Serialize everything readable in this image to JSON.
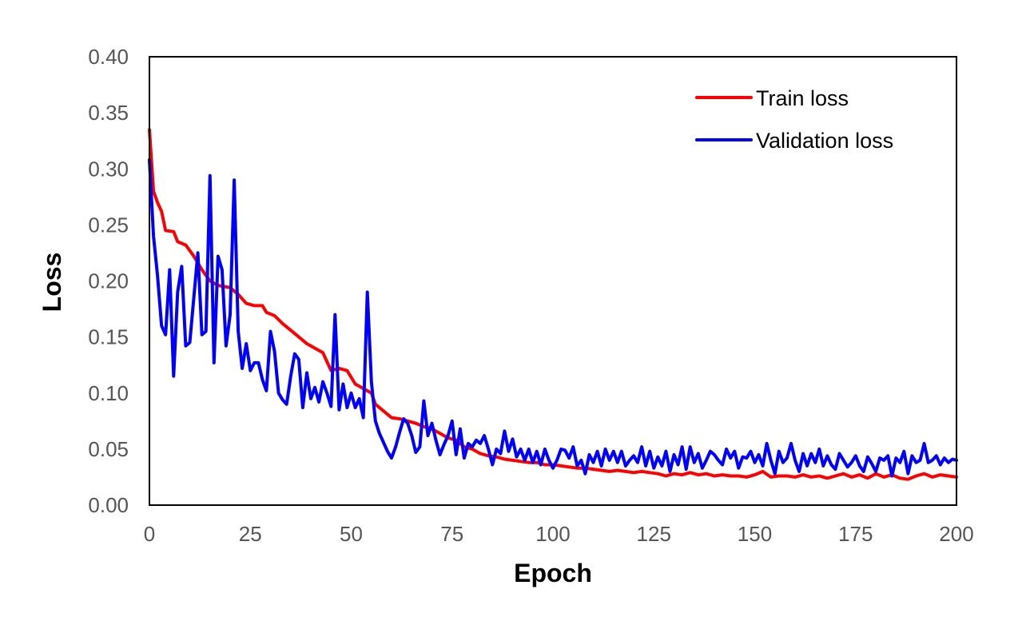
{
  "chart_data": {
    "type": "line",
    "title": "",
    "xlabel": "Epoch",
    "ylabel": "Loss",
    "xlim": [
      0,
      200
    ],
    "ylim": [
      0,
      0.4
    ],
    "x_ticks": [
      0,
      25,
      50,
      75,
      100,
      125,
      150,
      175,
      200
    ],
    "y_ticks": [
      0.0,
      0.05,
      0.1,
      0.15,
      0.2,
      0.25,
      0.3,
      0.35,
      0.4
    ],
    "y_tick_labels": [
      "0.00",
      "0.05",
      "0.10",
      "0.15",
      "0.20",
      "0.25",
      "0.30",
      "0.35",
      "0.40"
    ],
    "x_tick_labels": [
      "0",
      "25",
      "50",
      "75",
      "100",
      "125",
      "150",
      "175",
      "200"
    ],
    "grid": false,
    "legend_position": "top-right",
    "series": [
      {
        "name": "Train loss",
        "color": "#ff0000",
        "points": [
          [
            0,
            0.335
          ],
          [
            1,
            0.28
          ],
          [
            2,
            0.27
          ],
          [
            3,
            0.262
          ],
          [
            4,
            0.245
          ],
          [
            6,
            0.244
          ],
          [
            7,
            0.235
          ],
          [
            9,
            0.232
          ],
          [
            11,
            0.222
          ],
          [
            13,
            0.21
          ],
          [
            15,
            0.2
          ],
          [
            17,
            0.196
          ],
          [
            20,
            0.194
          ],
          [
            22,
            0.188
          ],
          [
            24,
            0.18
          ],
          [
            26,
            0.178
          ],
          [
            28,
            0.178
          ],
          [
            29,
            0.172
          ],
          [
            31,
            0.169
          ],
          [
            33,
            0.162
          ],
          [
            35,
            0.156
          ],
          [
            37,
            0.15
          ],
          [
            39,
            0.144
          ],
          [
            41,
            0.14
          ],
          [
            43,
            0.136
          ],
          [
            44,
            0.128
          ],
          [
            45,
            0.12
          ],
          [
            47,
            0.122
          ],
          [
            49,
            0.12
          ],
          [
            51,
            0.108
          ],
          [
            53,
            0.104
          ],
          [
            55,
            0.1
          ],
          [
            56,
            0.09
          ],
          [
            58,
            0.084
          ],
          [
            60,
            0.078
          ],
          [
            62,
            0.077
          ],
          [
            64,
            0.075
          ],
          [
            66,
            0.073
          ],
          [
            68,
            0.07
          ],
          [
            70,
            0.068
          ],
          [
            72,
            0.064
          ],
          [
            74,
            0.06
          ],
          [
            76,
            0.058
          ],
          [
            78,
            0.052
          ],
          [
            80,
            0.05
          ],
          [
            82,
            0.046
          ],
          [
            84,
            0.044
          ],
          [
            86,
            0.043
          ],
          [
            88,
            0.041
          ],
          [
            90,
            0.04
          ],
          [
            92,
            0.039
          ],
          [
            94,
            0.038
          ],
          [
            96,
            0.038
          ],
          [
            98,
            0.036
          ],
          [
            100,
            0.036
          ],
          [
            102,
            0.035
          ],
          [
            104,
            0.034
          ],
          [
            106,
            0.033
          ],
          [
            108,
            0.033
          ],
          [
            110,
            0.032
          ],
          [
            112,
            0.031
          ],
          [
            114,
            0.03
          ],
          [
            116,
            0.031
          ],
          [
            118,
            0.03
          ],
          [
            120,
            0.029
          ],
          [
            122,
            0.03
          ],
          [
            124,
            0.029
          ],
          [
            126,
            0.028
          ],
          [
            128,
            0.026
          ],
          [
            130,
            0.028
          ],
          [
            132,
            0.027
          ],
          [
            134,
            0.029
          ],
          [
            136,
            0.027
          ],
          [
            138,
            0.028
          ],
          [
            140,
            0.026
          ],
          [
            142,
            0.027
          ],
          [
            144,
            0.026
          ],
          [
            146,
            0.026
          ],
          [
            148,
            0.025
          ],
          [
            150,
            0.027
          ],
          [
            152,
            0.03
          ],
          [
            154,
            0.025
          ],
          [
            156,
            0.026
          ],
          [
            158,
            0.026
          ],
          [
            160,
            0.025
          ],
          [
            162,
            0.027
          ],
          [
            164,
            0.025
          ],
          [
            166,
            0.026
          ],
          [
            168,
            0.024
          ],
          [
            170,
            0.026
          ],
          [
            172,
            0.028
          ],
          [
            174,
            0.025
          ],
          [
            176,
            0.027
          ],
          [
            178,
            0.024
          ],
          [
            180,
            0.028
          ],
          [
            182,
            0.025
          ],
          [
            184,
            0.027
          ],
          [
            186,
            0.024
          ],
          [
            188,
            0.023
          ],
          [
            190,
            0.026
          ],
          [
            192,
            0.028
          ],
          [
            194,
            0.025
          ],
          [
            196,
            0.027
          ],
          [
            198,
            0.026
          ],
          [
            200,
            0.025
          ]
        ]
      },
      {
        "name": "Validation loss",
        "color": "#0000ff",
        "points": [
          [
            0,
            0.308
          ],
          [
            1,
            0.24
          ],
          [
            2,
            0.205
          ],
          [
            3,
            0.16
          ],
          [
            4,
            0.152
          ],
          [
            5,
            0.21
          ],
          [
            6,
            0.115
          ],
          [
            7,
            0.19
          ],
          [
            8,
            0.213
          ],
          [
            9,
            0.142
          ],
          [
            10,
            0.145
          ],
          [
            12,
            0.225
          ],
          [
            13,
            0.152
          ],
          [
            14,
            0.155
          ],
          [
            15,
            0.294
          ],
          [
            16,
            0.127
          ],
          [
            17,
            0.222
          ],
          [
            18,
            0.21
          ],
          [
            19,
            0.142
          ],
          [
            20,
            0.17
          ],
          [
            21,
            0.29
          ],
          [
            22,
            0.155
          ],
          [
            23,
            0.122
          ],
          [
            24,
            0.144
          ],
          [
            25,
            0.12
          ],
          [
            26,
            0.127
          ],
          [
            27,
            0.127
          ],
          [
            28,
            0.112
          ],
          [
            29,
            0.102
          ],
          [
            30,
            0.155
          ],
          [
            31,
            0.137
          ],
          [
            32,
            0.1
          ],
          [
            33,
            0.094
          ],
          [
            34,
            0.09
          ],
          [
            35,
            0.115
          ],
          [
            36,
            0.135
          ],
          [
            37,
            0.13
          ],
          [
            38,
            0.087
          ],
          [
            39,
            0.118
          ],
          [
            40,
            0.095
          ],
          [
            41,
            0.105
          ],
          [
            42,
            0.092
          ],
          [
            43,
            0.11
          ],
          [
            44,
            0.1
          ],
          [
            45,
            0.088
          ],
          [
            46,
            0.17
          ],
          [
            47,
            0.085
          ],
          [
            48,
            0.108
          ],
          [
            49,
            0.087
          ],
          [
            50,
            0.1
          ],
          [
            51,
            0.087
          ],
          [
            52,
            0.095
          ],
          [
            53,
            0.078
          ],
          [
            54,
            0.19
          ],
          [
            55,
            0.11
          ],
          [
            56,
            0.075
          ],
          [
            57,
            0.064
          ],
          [
            58,
            0.056
          ],
          [
            59,
            0.048
          ],
          [
            60,
            0.042
          ],
          [
            61,
            0.052
          ],
          [
            62,
            0.065
          ],
          [
            63,
            0.077
          ],
          [
            64,
            0.073
          ],
          [
            65,
            0.062
          ],
          [
            66,
            0.047
          ],
          [
            67,
            0.052
          ],
          [
            68,
            0.093
          ],
          [
            69,
            0.062
          ],
          [
            70,
            0.073
          ],
          [
            71,
            0.058
          ],
          [
            72,
            0.045
          ],
          [
            73,
            0.054
          ],
          [
            74,
            0.062
          ],
          [
            75,
            0.075
          ],
          [
            76,
            0.045
          ],
          [
            77,
            0.068
          ],
          [
            78,
            0.042
          ],
          [
            79,
            0.055
          ],
          [
            80,
            0.052
          ],
          [
            81,
            0.058
          ],
          [
            82,
            0.055
          ],
          [
            83,
            0.062
          ],
          [
            84,
            0.05
          ],
          [
            85,
            0.036
          ],
          [
            86,
            0.05
          ],
          [
            87,
            0.046
          ],
          [
            88,
            0.066
          ],
          [
            89,
            0.048
          ],
          [
            90,
            0.059
          ],
          [
            91,
            0.043
          ],
          [
            92,
            0.05
          ],
          [
            93,
            0.04
          ],
          [
            94,
            0.05
          ],
          [
            95,
            0.038
          ],
          [
            96,
            0.048
          ],
          [
            97,
            0.036
          ],
          [
            98,
            0.05
          ],
          [
            99,
            0.04
          ],
          [
            100,
            0.033
          ],
          [
            101,
            0.04
          ],
          [
            102,
            0.05
          ],
          [
            103,
            0.049
          ],
          [
            104,
            0.042
          ],
          [
            105,
            0.052
          ],
          [
            106,
            0.035
          ],
          [
            107,
            0.04
          ],
          [
            108,
            0.028
          ],
          [
            109,
            0.045
          ],
          [
            110,
            0.038
          ],
          [
            111,
            0.048
          ],
          [
            112,
            0.035
          ],
          [
            113,
            0.05
          ],
          [
            114,
            0.04
          ],
          [
            115,
            0.048
          ],
          [
            116,
            0.038
          ],
          [
            117,
            0.048
          ],
          [
            118,
            0.035
          ],
          [
            119,
            0.04
          ],
          [
            120,
            0.044
          ],
          [
            121,
            0.038
          ],
          [
            122,
            0.052
          ],
          [
            123,
            0.035
          ],
          [
            124,
            0.048
          ],
          [
            125,
            0.033
          ],
          [
            126,
            0.043
          ],
          [
            127,
            0.035
          ],
          [
            128,
            0.048
          ],
          [
            129,
            0.03
          ],
          [
            130,
            0.045
          ],
          [
            131,
            0.036
          ],
          [
            132,
            0.052
          ],
          [
            133,
            0.032
          ],
          [
            134,
            0.052
          ],
          [
            135,
            0.038
          ],
          [
            136,
            0.046
          ],
          [
            137,
            0.033
          ],
          [
            138,
            0.04
          ],
          [
            139,
            0.048
          ],
          [
            140,
            0.045
          ],
          [
            141,
            0.04
          ],
          [
            142,
            0.036
          ],
          [
            143,
            0.05
          ],
          [
            144,
            0.042
          ],
          [
            145,
            0.048
          ],
          [
            146,
            0.033
          ],
          [
            147,
            0.043
          ],
          [
            148,
            0.042
          ],
          [
            149,
            0.048
          ],
          [
            150,
            0.038
          ],
          [
            151,
            0.045
          ],
          [
            152,
            0.035
          ],
          [
            153,
            0.055
          ],
          [
            154,
            0.04
          ],
          [
            155,
            0.028
          ],
          [
            156,
            0.048
          ],
          [
            157,
            0.038
          ],
          [
            158,
            0.042
          ],
          [
            159,
            0.055
          ],
          [
            160,
            0.04
          ],
          [
            161,
            0.03
          ],
          [
            162,
            0.046
          ],
          [
            163,
            0.035
          ],
          [
            164,
            0.046
          ],
          [
            165,
            0.038
          ],
          [
            166,
            0.05
          ],
          [
            167,
            0.035
          ],
          [
            168,
            0.044
          ],
          [
            169,
            0.036
          ],
          [
            170,
            0.032
          ],
          [
            171,
            0.046
          ],
          [
            172,
            0.04
          ],
          [
            173,
            0.034
          ],
          [
            174,
            0.038
          ],
          [
            175,
            0.044
          ],
          [
            176,
            0.035
          ],
          [
            177,
            0.03
          ],
          [
            178,
            0.043
          ],
          [
            179,
            0.037
          ],
          [
            180,
            0.03
          ],
          [
            181,
            0.042
          ],
          [
            182,
            0.04
          ],
          [
            183,
            0.044
          ],
          [
            184,
            0.026
          ],
          [
            185,
            0.042
          ],
          [
            186,
            0.038
          ],
          [
            187,
            0.048
          ],
          [
            188,
            0.028
          ],
          [
            189,
            0.044
          ],
          [
            190,
            0.038
          ],
          [
            191,
            0.04
          ],
          [
            192,
            0.055
          ],
          [
            193,
            0.038
          ],
          [
            194,
            0.04
          ],
          [
            195,
            0.044
          ],
          [
            196,
            0.036
          ],
          [
            197,
            0.042
          ],
          [
            198,
            0.038
          ],
          [
            199,
            0.041
          ],
          [
            200,
            0.04
          ]
        ]
      }
    ]
  }
}
